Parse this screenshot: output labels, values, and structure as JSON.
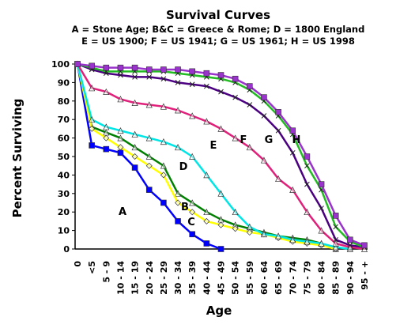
{
  "chart_data": {
    "type": "line",
    "title": "Survival Curves",
    "subtitle": [
      "A = Stone Age; B&C = Greece & Rome; D = 1800 England",
      "E = US 1900; F = US 1941; G = US 1961; H = US 1998"
    ],
    "x_label": "Age",
    "y_label": "Percent Surviving",
    "categories": [
      "0",
      "<5",
      "5 - 9",
      "10 - 14",
      "15 - 19",
      "20 - 24",
      "25 - 29",
      "30 - 34",
      "35 - 39",
      "40 - 44",
      "45 - 49",
      "50 - 54",
      "55 - 59",
      "60 - 64",
      "65 - 69",
      "70 - 74",
      "75 - 79",
      "80 - 84",
      "85 - 89",
      "90 - 94",
      "95 - +"
    ],
    "ylim": [
      0,
      100
    ],
    "yticks": [
      0,
      10,
      20,
      30,
      40,
      50,
      60,
      70,
      80,
      90,
      100
    ],
    "series": [
      {
        "name": "A",
        "color": "#0000ff",
        "marker": "square",
        "values": [
          100,
          56,
          54,
          52,
          44,
          32,
          25,
          15,
          8,
          3,
          0,
          null,
          null,
          null,
          null,
          null,
          null,
          null,
          null,
          null,
          null
        ]
      },
      {
        "name": "B",
        "color": "#008000",
        "marker": "triangle",
        "values": [
          100,
          66,
          63,
          60,
          55,
          50,
          45,
          30,
          25,
          20,
          16,
          13,
          11,
          9,
          7,
          6,
          5,
          3,
          0,
          null,
          null
        ]
      },
      {
        "name": "C",
        "color": "#ffff00",
        "marker": "diamond",
        "values": [
          100,
          65,
          60,
          55,
          50,
          45,
          40,
          25,
          20,
          15,
          13,
          11,
          9,
          8,
          6,
          4,
          3,
          2,
          0,
          null,
          null
        ]
      },
      {
        "name": "D",
        "color": "#00e5e5",
        "marker": "triangle",
        "values": [
          100,
          70,
          66,
          64,
          62,
          60,
          58,
          55,
          50,
          40,
          30,
          20,
          12,
          8,
          7,
          5,
          4,
          3,
          1,
          0,
          null
        ]
      },
      {
        "name": "E",
        "color": "#e0207a",
        "marker": "triangle",
        "values": [
          100,
          87,
          85,
          81,
          79,
          78,
          77,
          75,
          72,
          69,
          65,
          60,
          55,
          48,
          38,
          32,
          20,
          10,
          3,
          1,
          0
        ]
      },
      {
        "name": "F",
        "color": "#4b0082",
        "marker": "x",
        "values": [
          100,
          97,
          95,
          94,
          93,
          93,
          92,
          90,
          89,
          88,
          85,
          82,
          78,
          72,
          64,
          52,
          35,
          22,
          5,
          2,
          1
        ]
      },
      {
        "name": "G",
        "color": "#22bb22",
        "marker": "x",
        "values": [
          100,
          98,
          96,
          96,
          96,
          96,
          96,
          95,
          94,
          93,
          92,
          90,
          86,
          80,
          72,
          62,
          45,
          32,
          12,
          4,
          1
        ]
      },
      {
        "name": "H",
        "color": "#9933cc",
        "marker": "square",
        "values": [
          100,
          99,
          98,
          98,
          98,
          97,
          97,
          97,
          96,
          95,
          94,
          92,
          88,
          82,
          74,
          64,
          50,
          35,
          18,
          5,
          2
        ]
      }
    ]
  }
}
